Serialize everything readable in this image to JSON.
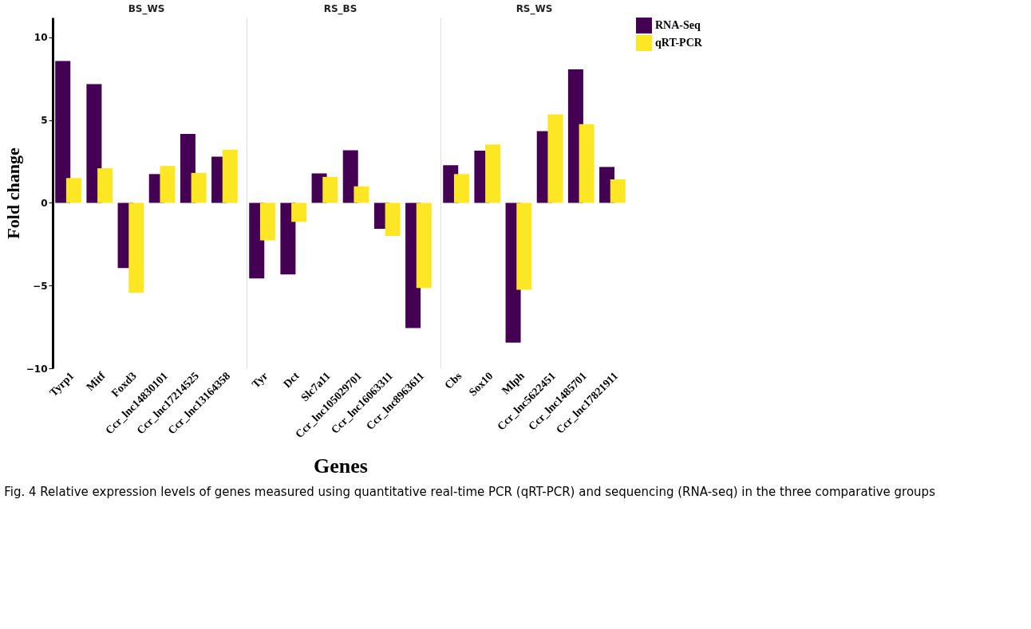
{
  "chart_data": [
    {
      "type": "bar",
      "title": "BS_WS",
      "ylabel": "Fold change",
      "categories": [
        "Tyrp1",
        "Mitf",
        "Foxd3",
        "Ccr_lnc14830101",
        "Ccr_lnc17214525",
        "Ccr_lnc13164358"
      ],
      "ylim": [
        -10,
        11.2
      ],
      "yticks": [
        -10,
        -5,
        0,
        5,
        10
      ],
      "grid": false,
      "legend": "right",
      "series": [
        {
          "name": "RNA-Seq",
          "color": "#440154",
          "values": [
            8.57,
            7.18,
            -3.94,
            1.74,
            4.17,
            2.79
          ]
        },
        {
          "name": "qRT-PCR",
          "color": "#fde725",
          "values": [
            1.5,
            2.09,
            -5.44,
            2.23,
            1.81,
            3.21
          ]
        }
      ]
    },
    {
      "type": "bar",
      "title": "RS_BS",
      "xlabel": "Genes",
      "categories": [
        "Tyr",
        "Dct",
        "Slc7a11",
        "Ccr_lnc105029701",
        "Ccr_lnc16063311",
        "Ccr_lnc8963611"
      ],
      "ylim": [
        -10,
        11.2
      ],
      "tick_labels": "x",
      "grid": false,
      "series": [
        {
          "name": "RNA-Seq",
          "color": "#440154",
          "values": [
            -4.57,
            -4.33,
            1.78,
            3.18,
            -1.57,
            -7.57
          ]
        },
        {
          "name": "qRT-PCR",
          "color": "#fde725",
          "values": [
            -2.27,
            -1.15,
            1.57,
            1.0,
            -2.0,
            -5.15
          ]
        }
      ]
    },
    {
      "type": "bar",
      "title": "RS_WS",
      "categories": [
        "Cbs",
        "Sox10",
        "Mlph",
        "Ccr_lnc5622451",
        "Ccr_lnc1485701",
        "Ccr_lnc17821911"
      ],
      "ylim": [
        -10,
        11.2
      ],
      "tick_labels": "x",
      "grid": false,
      "annotations": [
        "Fig. 4 Relative expression levels of genes measured using quantitative real-time PCR (qRT-PCR) and sequencing (RNA-seq) in the three comparative groups"
      ],
      "series": [
        {
          "name": "RNA-Seq",
          "color": "#440154",
          "values": [
            2.28,
            3.15,
            -8.45,
            4.33,
            8.07,
            2.17
          ]
        },
        {
          "name": "qRT-PCR",
          "color": "#fde725",
          "values": [
            1.74,
            3.53,
            -5.26,
            5.35,
            4.75,
            1.42
          ]
        }
      ]
    }
  ]
}
